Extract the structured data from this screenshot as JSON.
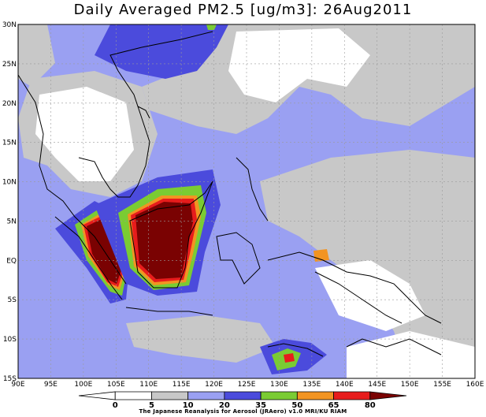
{
  "title": "Daily Averaged PM2.5 [ug/m3]: 26Aug2011",
  "credit": "The Japanese Reanalysis for Aerosol (JRAero) v1.0 MRI/KU RIAM",
  "lon_ticks": [
    "90E",
    "95E",
    "100E",
    "105E",
    "110E",
    "115E",
    "120E",
    "125E",
    "130E",
    "135E",
    "140E",
    "145E",
    "150E",
    "155E",
    "160E"
  ],
  "lat_ticks": [
    "30N",
    "25N",
    "20N",
    "15N",
    "10N",
    "5N",
    "EQ",
    "5S",
    "10S",
    "15S"
  ],
  "colorbar": {
    "labels": [
      "0",
      "5",
      "10",
      "20",
      "35",
      "50",
      "65",
      "80"
    ],
    "colors": [
      "#ffffff",
      "#ffffff",
      "#c8c8c8",
      "#9aa0f2",
      "#4b4bdc",
      "#7acc33",
      "#f29422",
      "#e71c1c",
      "#7a0202"
    ]
  },
  "colors": {
    "gray": "#c8c8c8",
    "light_blue": "#9aa0f2",
    "blue": "#4b4bdc",
    "green": "#7acc33",
    "orange": "#f29422",
    "red": "#e71c1c",
    "dark_red": "#7a0202"
  }
}
